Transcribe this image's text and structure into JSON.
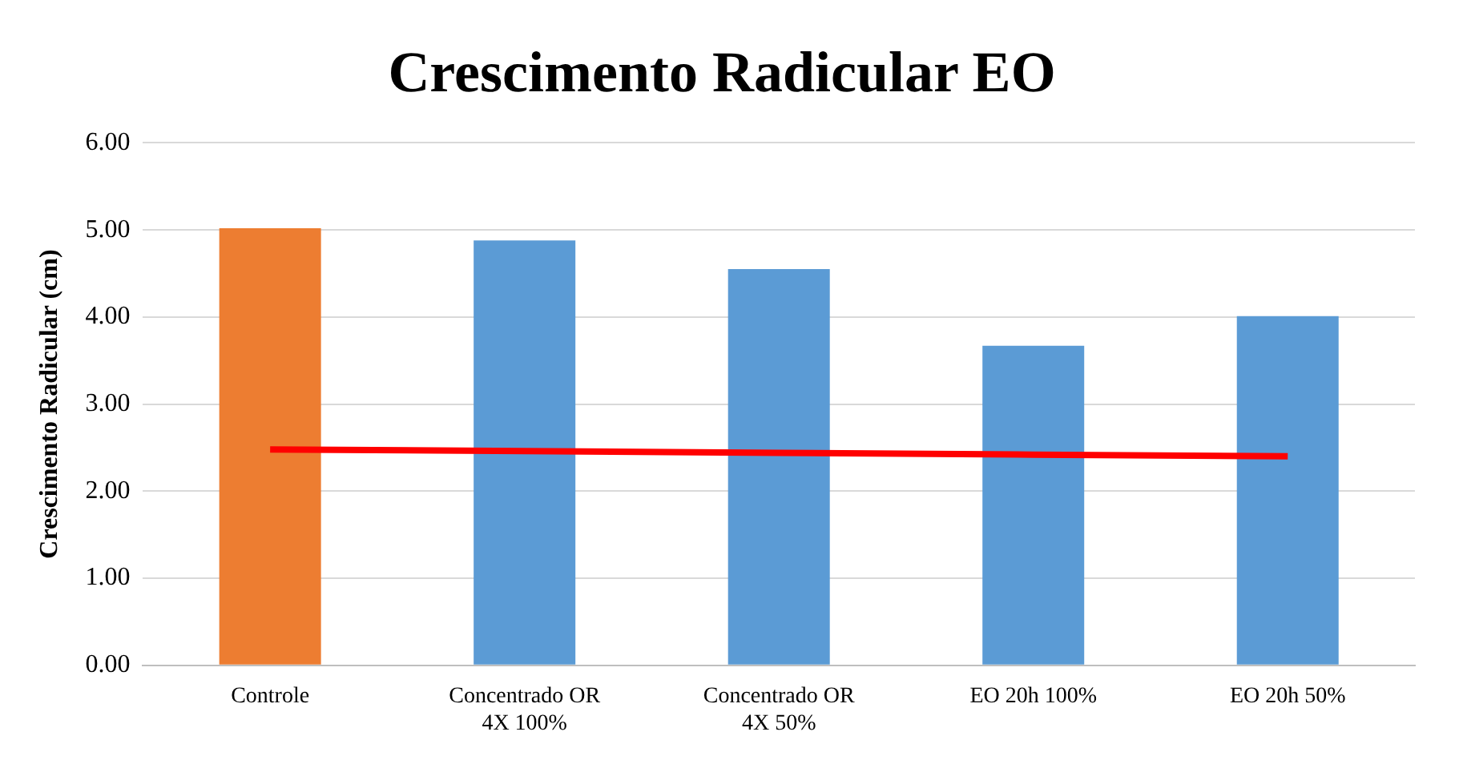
{
  "chart_data": {
    "type": "bar",
    "title": "Crescimento Radicular EO",
    "ylabel": "Crescimento Radicular (cm)",
    "categories": [
      "Controle",
      "Concentrado OR 4X 100%",
      "Concentrado OR 4X 50%",
      "EO 20h 100%",
      "EO 20h 50%"
    ],
    "series": [
      {
        "colors": [
          "#ed7d31",
          "#5b9bd5",
          "#5b9bd5",
          "#5b9bd5",
          "#5b9bd5"
        ],
        "values": [
          5.02,
          4.88,
          4.55,
          3.67,
          4.01
        ]
      },
      {
        "type": "line",
        "color": "#ff0000",
        "values": [
          2.48,
          2.46,
          2.44,
          2.42,
          2.4
        ],
        "marker": "none"
      }
    ],
    "ylim": [
      0,
      6
    ],
    "yticks": [
      {
        "value": 0,
        "label": "0.00"
      },
      {
        "value": 1,
        "label": "1.00"
      },
      {
        "value": 2,
        "label": "2.00"
      },
      {
        "value": 3,
        "label": "3.00"
      },
      {
        "value": 4,
        "label": "4.00"
      },
      {
        "value": 5,
        "label": "5.00"
      },
      {
        "value": 6,
        "label": "6.00"
      }
    ],
    "grid": "y",
    "legend": false
  }
}
